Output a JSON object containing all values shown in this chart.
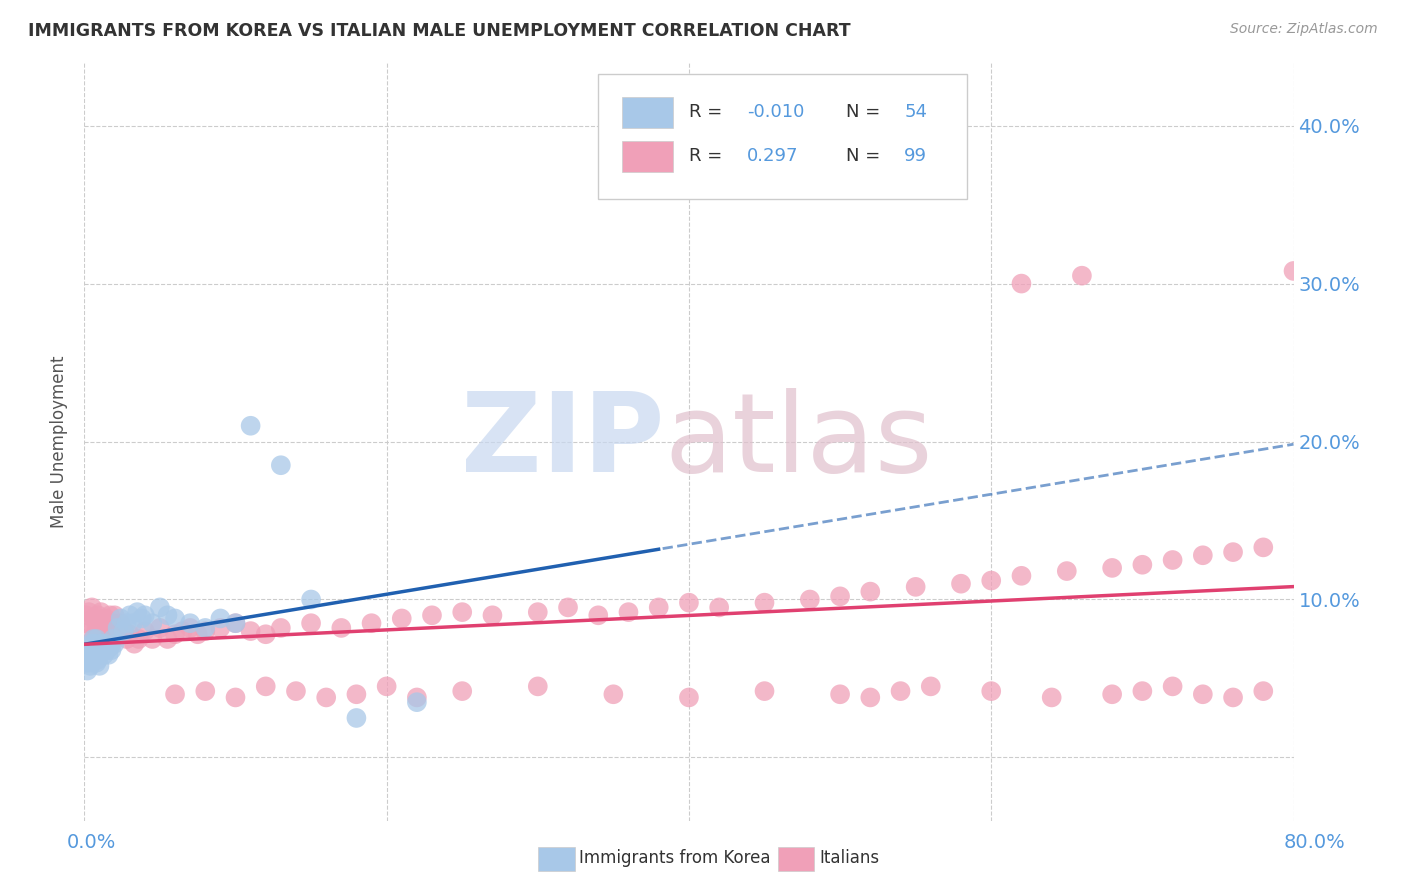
{
  "title": "IMMIGRANTS FROM KOREA VS ITALIAN MALE UNEMPLOYMENT CORRELATION CHART",
  "source": "Source: ZipAtlas.com",
  "ylabel": "Male Unemployment",
  "ytick_values": [
    0.0,
    0.1,
    0.2,
    0.3,
    0.4
  ],
  "ytick_labels": [
    "",
    "10.0%",
    "20.0%",
    "30.0%",
    "40.0%"
  ],
  "xlim": [
    0.0,
    0.8
  ],
  "ylim": [
    -0.04,
    0.44
  ],
  "legend_korea_r": "-0.010",
  "legend_korea_n": "54",
  "legend_italian_r": "0.297",
  "legend_italian_n": "99",
  "korea_color": "#a8c8e8",
  "italian_color": "#f0a0b8",
  "korea_line_color": "#2060b0",
  "italian_line_color": "#e04070",
  "watermark_zip_color": "#c8d8f0",
  "watermark_atlas_color": "#e0c0cc",
  "background_color": "#ffffff",
  "grid_color": "#cccccc",
  "tick_color": "#5599dd",
  "title_color": "#333333",
  "source_color": "#999999",
  "korea_scatter_x": [
    0.001,
    0.002,
    0.003,
    0.003,
    0.003,
    0.004,
    0.004,
    0.005,
    0.005,
    0.005,
    0.006,
    0.006,
    0.007,
    0.007,
    0.008,
    0.008,
    0.008,
    0.009,
    0.009,
    0.01,
    0.01,
    0.011,
    0.011,
    0.012,
    0.013,
    0.014,
    0.015,
    0.016,
    0.017,
    0.018,
    0.019,
    0.02,
    0.022,
    0.024,
    0.026,
    0.028,
    0.03,
    0.032,
    0.035,
    0.038,
    0.04,
    0.045,
    0.05,
    0.055,
    0.06,
    0.07,
    0.08,
    0.09,
    0.1,
    0.11,
    0.13,
    0.15,
    0.18,
    0.22
  ],
  "korea_scatter_y": [
    0.06,
    0.055,
    0.065,
    0.07,
    0.06,
    0.058,
    0.068,
    0.062,
    0.072,
    0.065,
    0.075,
    0.068,
    0.065,
    0.072,
    0.06,
    0.068,
    0.075,
    0.062,
    0.07,
    0.058,
    0.065,
    0.072,
    0.068,
    0.07,
    0.065,
    0.072,
    0.068,
    0.065,
    0.07,
    0.068,
    0.075,
    0.072,
    0.082,
    0.088,
    0.08,
    0.085,
    0.09,
    0.085,
    0.092,
    0.088,
    0.09,
    0.085,
    0.095,
    0.09,
    0.088,
    0.085,
    0.082,
    0.088,
    0.085,
    0.21,
    0.185,
    0.1,
    0.025,
    0.035
  ],
  "italian_scatter_x": [
    0.001,
    0.002,
    0.003,
    0.004,
    0.005,
    0.006,
    0.007,
    0.008,
    0.009,
    0.01,
    0.011,
    0.012,
    0.013,
    0.014,
    0.015,
    0.016,
    0.017,
    0.018,
    0.019,
    0.02,
    0.022,
    0.024,
    0.026,
    0.028,
    0.03,
    0.033,
    0.036,
    0.04,
    0.045,
    0.05,
    0.055,
    0.06,
    0.065,
    0.07,
    0.075,
    0.08,
    0.09,
    0.1,
    0.11,
    0.12,
    0.13,
    0.15,
    0.17,
    0.19,
    0.21,
    0.23,
    0.25,
    0.27,
    0.3,
    0.32,
    0.34,
    0.36,
    0.38,
    0.4,
    0.42,
    0.45,
    0.48,
    0.5,
    0.52,
    0.55,
    0.58,
    0.6,
    0.62,
    0.65,
    0.68,
    0.7,
    0.72,
    0.74,
    0.76,
    0.78,
    0.06,
    0.08,
    0.1,
    0.12,
    0.14,
    0.16,
    0.18,
    0.2,
    0.22,
    0.25,
    0.3,
    0.35,
    0.4,
    0.45,
    0.5,
    0.52,
    0.54,
    0.56,
    0.6,
    0.64,
    0.68,
    0.7,
    0.72,
    0.74,
    0.76,
    0.78,
    0.62,
    0.66,
    0.8
  ],
  "italian_scatter_y": [
    0.09,
    0.085,
    0.092,
    0.08,
    0.095,
    0.088,
    0.078,
    0.082,
    0.09,
    0.085,
    0.092,
    0.078,
    0.082,
    0.088,
    0.085,
    0.082,
    0.09,
    0.078,
    0.085,
    0.09,
    0.082,
    0.085,
    0.08,
    0.075,
    0.078,
    0.072,
    0.075,
    0.08,
    0.075,
    0.082,
    0.075,
    0.078,
    0.08,
    0.082,
    0.078,
    0.08,
    0.082,
    0.085,
    0.08,
    0.078,
    0.082,
    0.085,
    0.082,
    0.085,
    0.088,
    0.09,
    0.092,
    0.09,
    0.092,
    0.095,
    0.09,
    0.092,
    0.095,
    0.098,
    0.095,
    0.098,
    0.1,
    0.102,
    0.105,
    0.108,
    0.11,
    0.112,
    0.115,
    0.118,
    0.12,
    0.122,
    0.125,
    0.128,
    0.13,
    0.133,
    0.04,
    0.042,
    0.038,
    0.045,
    0.042,
    0.038,
    0.04,
    0.045,
    0.038,
    0.042,
    0.045,
    0.04,
    0.038,
    0.042,
    0.04,
    0.038,
    0.042,
    0.045,
    0.042,
    0.038,
    0.04,
    0.042,
    0.045,
    0.04,
    0.038,
    0.042,
    0.3,
    0.305,
    0.308
  ]
}
